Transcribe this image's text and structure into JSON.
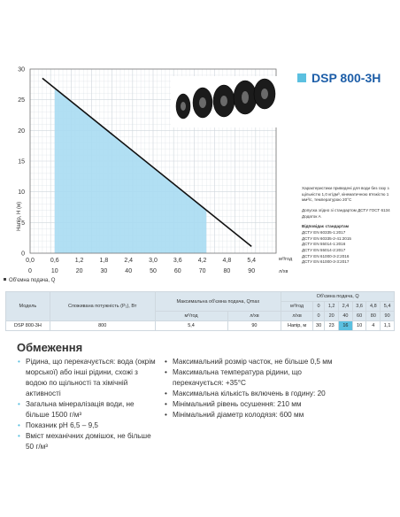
{
  "title": "DSP 800-3H",
  "chart_data": {
    "type": "line",
    "ylabel": "Напір, Н (м)",
    "xlabel_top": "Об'ємна подача, Q",
    "x_unit": "м³/год",
    "x2_unit": "л/хв",
    "x_ticks": [
      "0,0",
      "0,6",
      "1,2",
      "1,8",
      "2,4",
      "3,0",
      "3,6",
      "4,2",
      "4,8",
      "5,4"
    ],
    "x2_ticks": [
      "0",
      "10",
      "20",
      "30",
      "40",
      "50",
      "60",
      "70",
      "80",
      "90"
    ],
    "y_ticks": [
      "0",
      "5",
      "10",
      "15",
      "20",
      "25",
      "30"
    ],
    "xlim": [
      0,
      6.0
    ],
    "ylim": [
      0,
      30
    ],
    "x": [
      0.3,
      5.4
    ],
    "y": [
      28.5,
      1.1
    ],
    "fill_range": [
      0.6,
      4.3
    ],
    "grid": true
  },
  "info": {
    "lines": "Характеристики приведені для води без газу з щільністю 1,0 кг/дм³, кінематичною в'язкістю 1 мм²/с, температурою 20°C",
    "approval": "Допуска згідно зі стандартом ДСТУ ГОСТ 6134 Додаток А",
    "standards_title": "Відповідає стандартам",
    "standards": [
      "ДСТУ EN 60335-1:2017",
      "ДСТУ EN 60335-2-41:2015",
      "ДСТУ EN 55014-1:2016",
      "ДСТУ EN 55014-2:2017",
      "ДСТУ EN 61000-3-2:2016",
      "ДСТУ EN 61000-3-3:2017"
    ]
  },
  "table": {
    "h_model": "Модель",
    "h_power": "Споживана потужність (P₁), Вт",
    "h_max": "Максимальна об'ємна подача, Qmax",
    "h_flow": "Об'ємна подача, Q",
    "u_m3": "м³/год",
    "u_lmin": "л/хв",
    "m3_values": [
      "0",
      "1,2",
      "2,4",
      "3,6",
      "4,8",
      "5,4"
    ],
    "lmin_values": [
      "0",
      "20",
      "40",
      "60",
      "80",
      "90"
    ],
    "model": "DSP 800-3H",
    "power": "800",
    "qmax_m3": "5,4",
    "qmax_l": "90",
    "head_label": "Напір, м",
    "head_values": [
      "30",
      "23",
      "16",
      "10",
      "4",
      "1,1"
    ]
  },
  "section_title": "Обмеження",
  "left_list": [
    "Рідина, що перекачується: вода (окрім морської) або інші рідини, схожі з водою по щільності та хімічній активності",
    "Загальна мінералізація води, не більше 1500 г/м³",
    "Показник pH 6,5 – 9,5",
    "Вміст механічних домішок, не більше 50 г/м³"
  ],
  "right_list": [
    "Максимальний розмір часток, не більше 0,5 мм",
    "Максимальна температура рідини, що перекачується: +35°C",
    "Максимальна кількість включень в годину: 20",
    "Мінімальний рівень осушення: 210 мм",
    "Мінімальний діаметр колодязя: 600 мм"
  ],
  "colors": {
    "accent": "#5bc0e0",
    "title": "#1d5ea8",
    "fill": "#a9dcf2"
  }
}
